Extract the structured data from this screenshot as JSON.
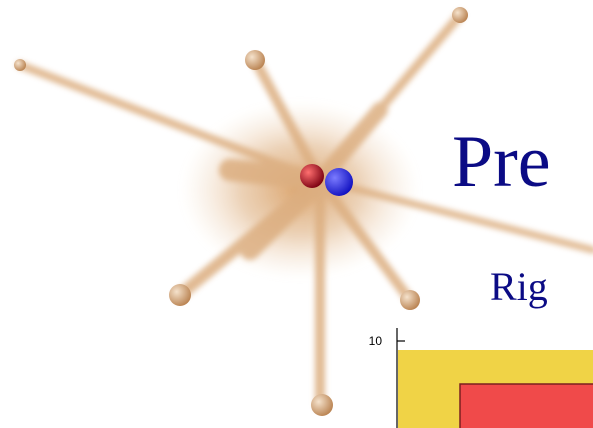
{
  "title": "Pre",
  "subtitle": "Rig",
  "plot": {
    "tick_label": "10"
  }
}
